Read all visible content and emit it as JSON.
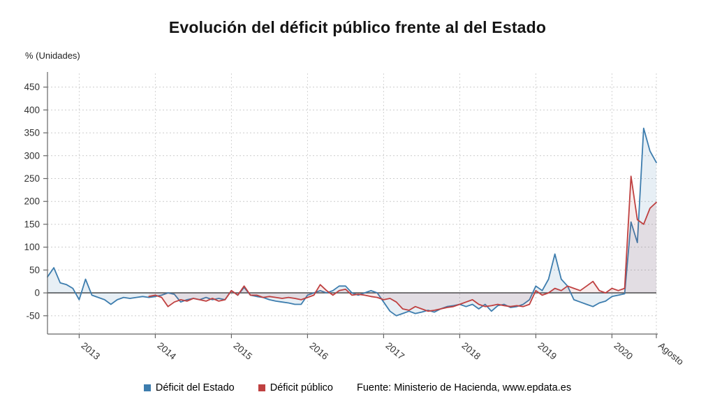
{
  "title": "Evolución del déficit público frente al del Estado",
  "y_unit_label": "% (Unidades)",
  "legend": [
    {
      "label": "Déficit del Estado",
      "color": "#3d7dae"
    },
    {
      "label": "Déficit público",
      "color": "#bf4040"
    }
  ],
  "source": "Fuente: Ministerio de Hacienda, www.epdata.es",
  "chart_data": {
    "type": "line",
    "title": "Evolución del déficit público frente al del Estado",
    "ylabel": "% (Unidades)",
    "xlabel": "",
    "x_tick_labels": [
      "2013",
      "2014",
      "2015",
      "2016",
      "2017",
      "2018",
      "2019",
      "2020",
      "Agosto"
    ],
    "y_ticks": [
      -50,
      0,
      50,
      100,
      150,
      200,
      250,
      300,
      350,
      400,
      450
    ],
    "ylim": [
      -90,
      480
    ],
    "x_start": "2012-08",
    "x_end": "2020-08",
    "grid": "dotted",
    "legend_position": "bottom",
    "zero_line": true,
    "series": [
      {
        "name": "Déficit del Estado",
        "color": "#3d7dae",
        "fill_opacity": 0.12,
        "start": "2012-08",
        "values": [
          35,
          55,
          22,
          18,
          10,
          -15,
          30,
          -5,
          -10,
          -15,
          -25,
          -15,
          -10,
          -12,
          -10,
          -8,
          -10,
          -8,
          -5,
          0,
          -3,
          -20,
          -15,
          -12,
          -15,
          -10,
          -15,
          -12,
          -15,
          5,
          -5,
          12,
          -5,
          -8,
          -10,
          -15,
          -18,
          -20,
          -22,
          -25,
          -25,
          -5,
          0,
          5,
          0,
          5,
          15,
          15,
          0,
          -5,
          0,
          5,
          0,
          -20,
          -40,
          -50,
          -45,
          -40,
          -45,
          -42,
          -38,
          -42,
          -35,
          -30,
          -28,
          -25,
          -30,
          -25,
          -35,
          -25,
          -40,
          -28,
          -25,
          -32,
          -30,
          -25,
          -15,
          15,
          5,
          30,
          85,
          30,
          15,
          -15,
          -20,
          -25,
          -30,
          -22,
          -18,
          -8,
          -5,
          -2,
          155,
          110,
          360,
          310,
          285
        ]
      },
      {
        "name": "Déficit público",
        "color": "#bf4040",
        "fill_opacity": 0.1,
        "start": "2013-12",
        "values": [
          -8,
          -5,
          -10,
          -30,
          -20,
          -15,
          -18,
          -12,
          -15,
          -18,
          -12,
          -18,
          -15,
          5,
          -5,
          15,
          -5,
          -5,
          -10,
          -8,
          -10,
          -12,
          -10,
          -12,
          -15,
          -10,
          -5,
          18,
          5,
          -5,
          5,
          8,
          -5,
          -3,
          -5,
          -8,
          -10,
          -15,
          -12,
          -20,
          -35,
          -38,
          -30,
          -35,
          -40,
          -38,
          -35,
          -32,
          -30,
          -25,
          -20,
          -15,
          -25,
          -30,
          -28,
          -25,
          -28,
          -30,
          -28,
          -30,
          -25,
          5,
          -5,
          0,
          10,
          5,
          15,
          10,
          5,
          15,
          25,
          5,
          0,
          10,
          5,
          10,
          255,
          160,
          150,
          185,
          198
        ]
      }
    ]
  }
}
